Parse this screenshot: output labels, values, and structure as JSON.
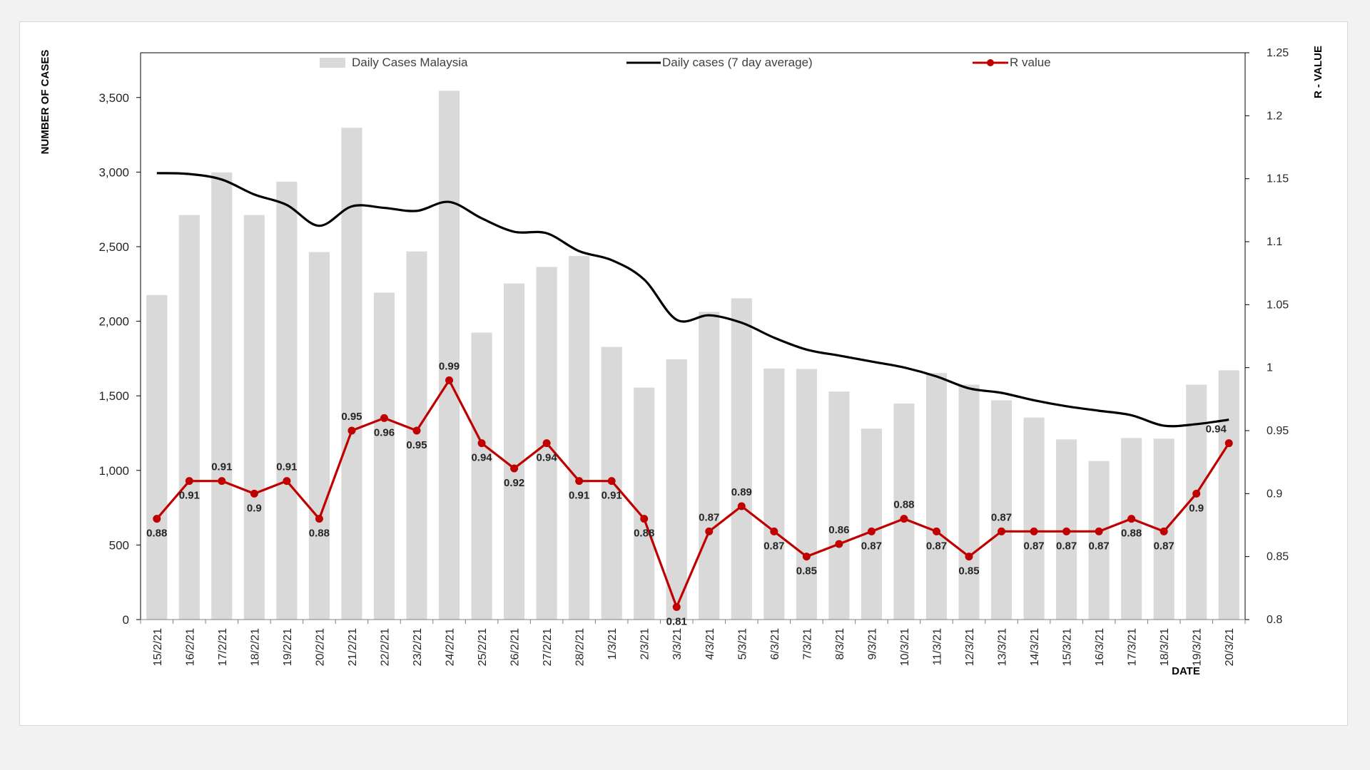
{
  "colors": {
    "bars": "#d9d9d9",
    "avg_line": "#000000",
    "r_line": "#c00000",
    "axis": "#000000",
    "background": "#ffffff"
  },
  "chart_data": {
    "type": "bar",
    "xlabel": "DATE",
    "ylabel": "NUMBER  OF CASES",
    "y2label": "R - VALUE",
    "ylim": [
      0,
      3800
    ],
    "y2lim": [
      0.8,
      1.25
    ],
    "yticks": [
      0,
      500,
      1000,
      1500,
      2000,
      2500,
      3000,
      3500
    ],
    "ytick_labels": [
      "0",
      "500",
      "1,000",
      "1,500",
      "2,000",
      "2,500",
      "3,000",
      "3,500"
    ],
    "y2ticks": [
      0.8,
      0.85,
      0.9,
      0.95,
      1.0,
      1.05,
      1.1,
      1.15,
      1.2,
      1.25
    ],
    "y2tick_labels": [
      "0.8",
      "0.85",
      "0.9",
      "0.95",
      "1",
      "1.05",
      "1.1",
      "1.15",
      "1.2",
      "1.25"
    ],
    "legend_position": "top",
    "categories": [
      "15/2/21",
      "16/2/21",
      "17/2/21",
      "18/2/21",
      "19/2/21",
      "20/2/21",
      "21/2/21",
      "22/2/21",
      "23/2/21",
      "24/2/21",
      "25/2/21",
      "26/2/21",
      "27/2/21",
      "28/2/21",
      "1/3/21",
      "2/3/21",
      "3/3/21",
      "4/3/21",
      "5/3/21",
      "6/3/21",
      "7/3/21",
      "8/3/21",
      "9/3/21",
      "10/3/21",
      "11/3/21",
      "12/3/21",
      "13/3/21",
      "14/3/21",
      "15/3/21",
      "16/3/21",
      "17/3/21",
      "18/3/21",
      "19/3/21",
      "20/3/21"
    ],
    "series": [
      {
        "name": "Daily Cases Malaysia",
        "type": "bar",
        "axis": "left",
        "values": [
          2176,
          2712,
          2998,
          2712,
          2936,
          2464,
          3297,
          2192,
          2468,
          3545,
          1924,
          2253,
          2364,
          2437,
          1828,
          1555,
          1745,
          2063,
          2154,
          1683,
          1680,
          1529,
          1280,
          1448,
          1653,
          1575,
          1470,
          1354,
          1208,
          1063,
          1217,
          1213,
          1575,
          1671
        ]
      },
      {
        "name": "Daily cases (7 day average)",
        "type": "line",
        "axis": "left",
        "values": [
          2993,
          2987,
          2950,
          2850,
          2780,
          2640,
          2770,
          2760,
          2740,
          2800,
          2690,
          2600,
          2590,
          2470,
          2410,
          2280,
          2010,
          2040,
          1990,
          1890,
          1810,
          1770,
          1730,
          1690,
          1630,
          1550,
          1520,
          1470,
          1430,
          1400,
          1370,
          1300,
          1310,
          1340
        ]
      },
      {
        "name": "R value",
        "type": "line",
        "axis": "right",
        "values": [
          0.88,
          0.91,
          0.91,
          0.9,
          0.91,
          0.88,
          0.95,
          0.96,
          0.95,
          0.99,
          0.94,
          0.92,
          0.94,
          0.91,
          0.91,
          0.88,
          0.81,
          0.87,
          0.89,
          0.87,
          0.85,
          0.86,
          0.87,
          0.88,
          0.87,
          0.85,
          0.87,
          0.87,
          0.87,
          0.87,
          0.88,
          0.87,
          0.9,
          0.94
        ],
        "labels": [
          "0.88",
          "0.91",
          "0.91",
          "0.9",
          "0.91",
          "0.88",
          "0.95",
          "0.96",
          "0.95",
          "0.99",
          "0.94",
          "0.92",
          "0.94",
          "0.91",
          "0.91",
          "0.88",
          "0.81",
          "0.87",
          "0.89",
          "0.87",
          "0.85",
          "0.86",
          "0.87",
          "0.88",
          "0.87",
          "0.85",
          "0.87",
          "0.87",
          "0.87",
          "0.87",
          "0.88",
          "0.87",
          "0.9",
          "0.94"
        ]
      }
    ]
  }
}
